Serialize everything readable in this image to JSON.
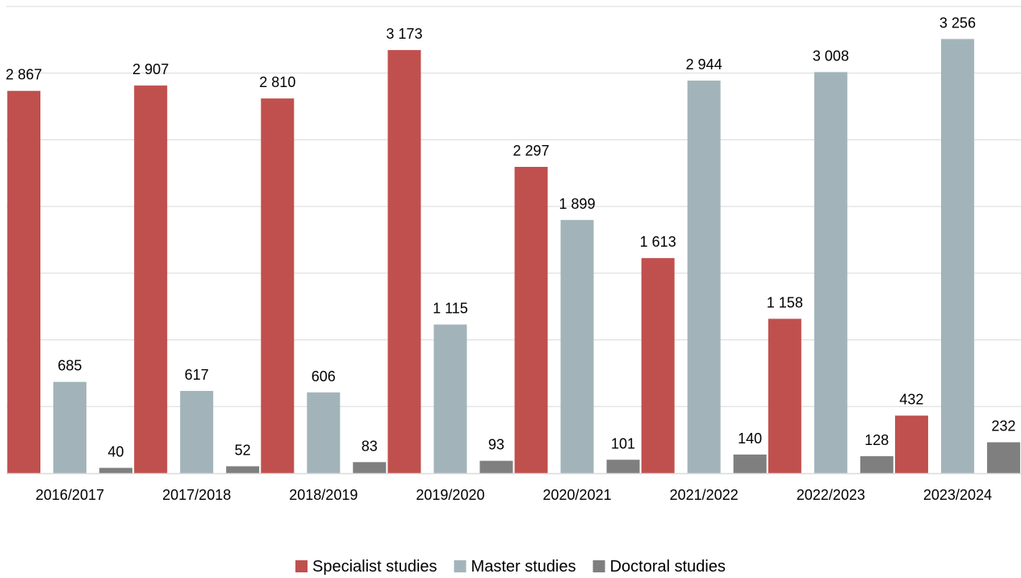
{
  "chart_data": {
    "type": "bar",
    "categories": [
      "2016/2017",
      "2017/2018",
      "2018/2019",
      "2019/2020",
      "2020/2021",
      "2021/2022",
      "2022/2023",
      "2023/2024"
    ],
    "series": [
      {
        "name": "Specialist studies",
        "color": "#c0504d",
        "values": [
          2867,
          2907,
          2810,
          3173,
          2297,
          1613,
          1158,
          432
        ]
      },
      {
        "name": "Master studies",
        "color": "#a2b4ba",
        "values": [
          685,
          617,
          606,
          1115,
          1899,
          2944,
          3008,
          3256
        ]
      },
      {
        "name": "Doctoral studies",
        "color": "#7f7f7f",
        "values": [
          40,
          52,
          83,
          93,
          101,
          140,
          128,
          232
        ]
      }
    ],
    "data_labels": [
      [
        "2 867",
        "2 907",
        "2 810",
        "3 173",
        "2 297",
        "1 613",
        "1 158",
        "432"
      ],
      [
        "685",
        "617",
        "606",
        "1 115",
        "1 899",
        "2 944",
        "3 008",
        "3 256"
      ],
      [
        "40",
        "52",
        "83",
        "93",
        "101",
        "140",
        "128",
        "232"
      ]
    ],
    "ylim": [
      0,
      3500
    ],
    "y_gridlines": [
      500,
      1000,
      1500,
      2000,
      2500,
      3000,
      3500
    ],
    "grid": true,
    "legend_position": "bottom",
    "title": "",
    "xlabel": "",
    "ylabel": ""
  }
}
